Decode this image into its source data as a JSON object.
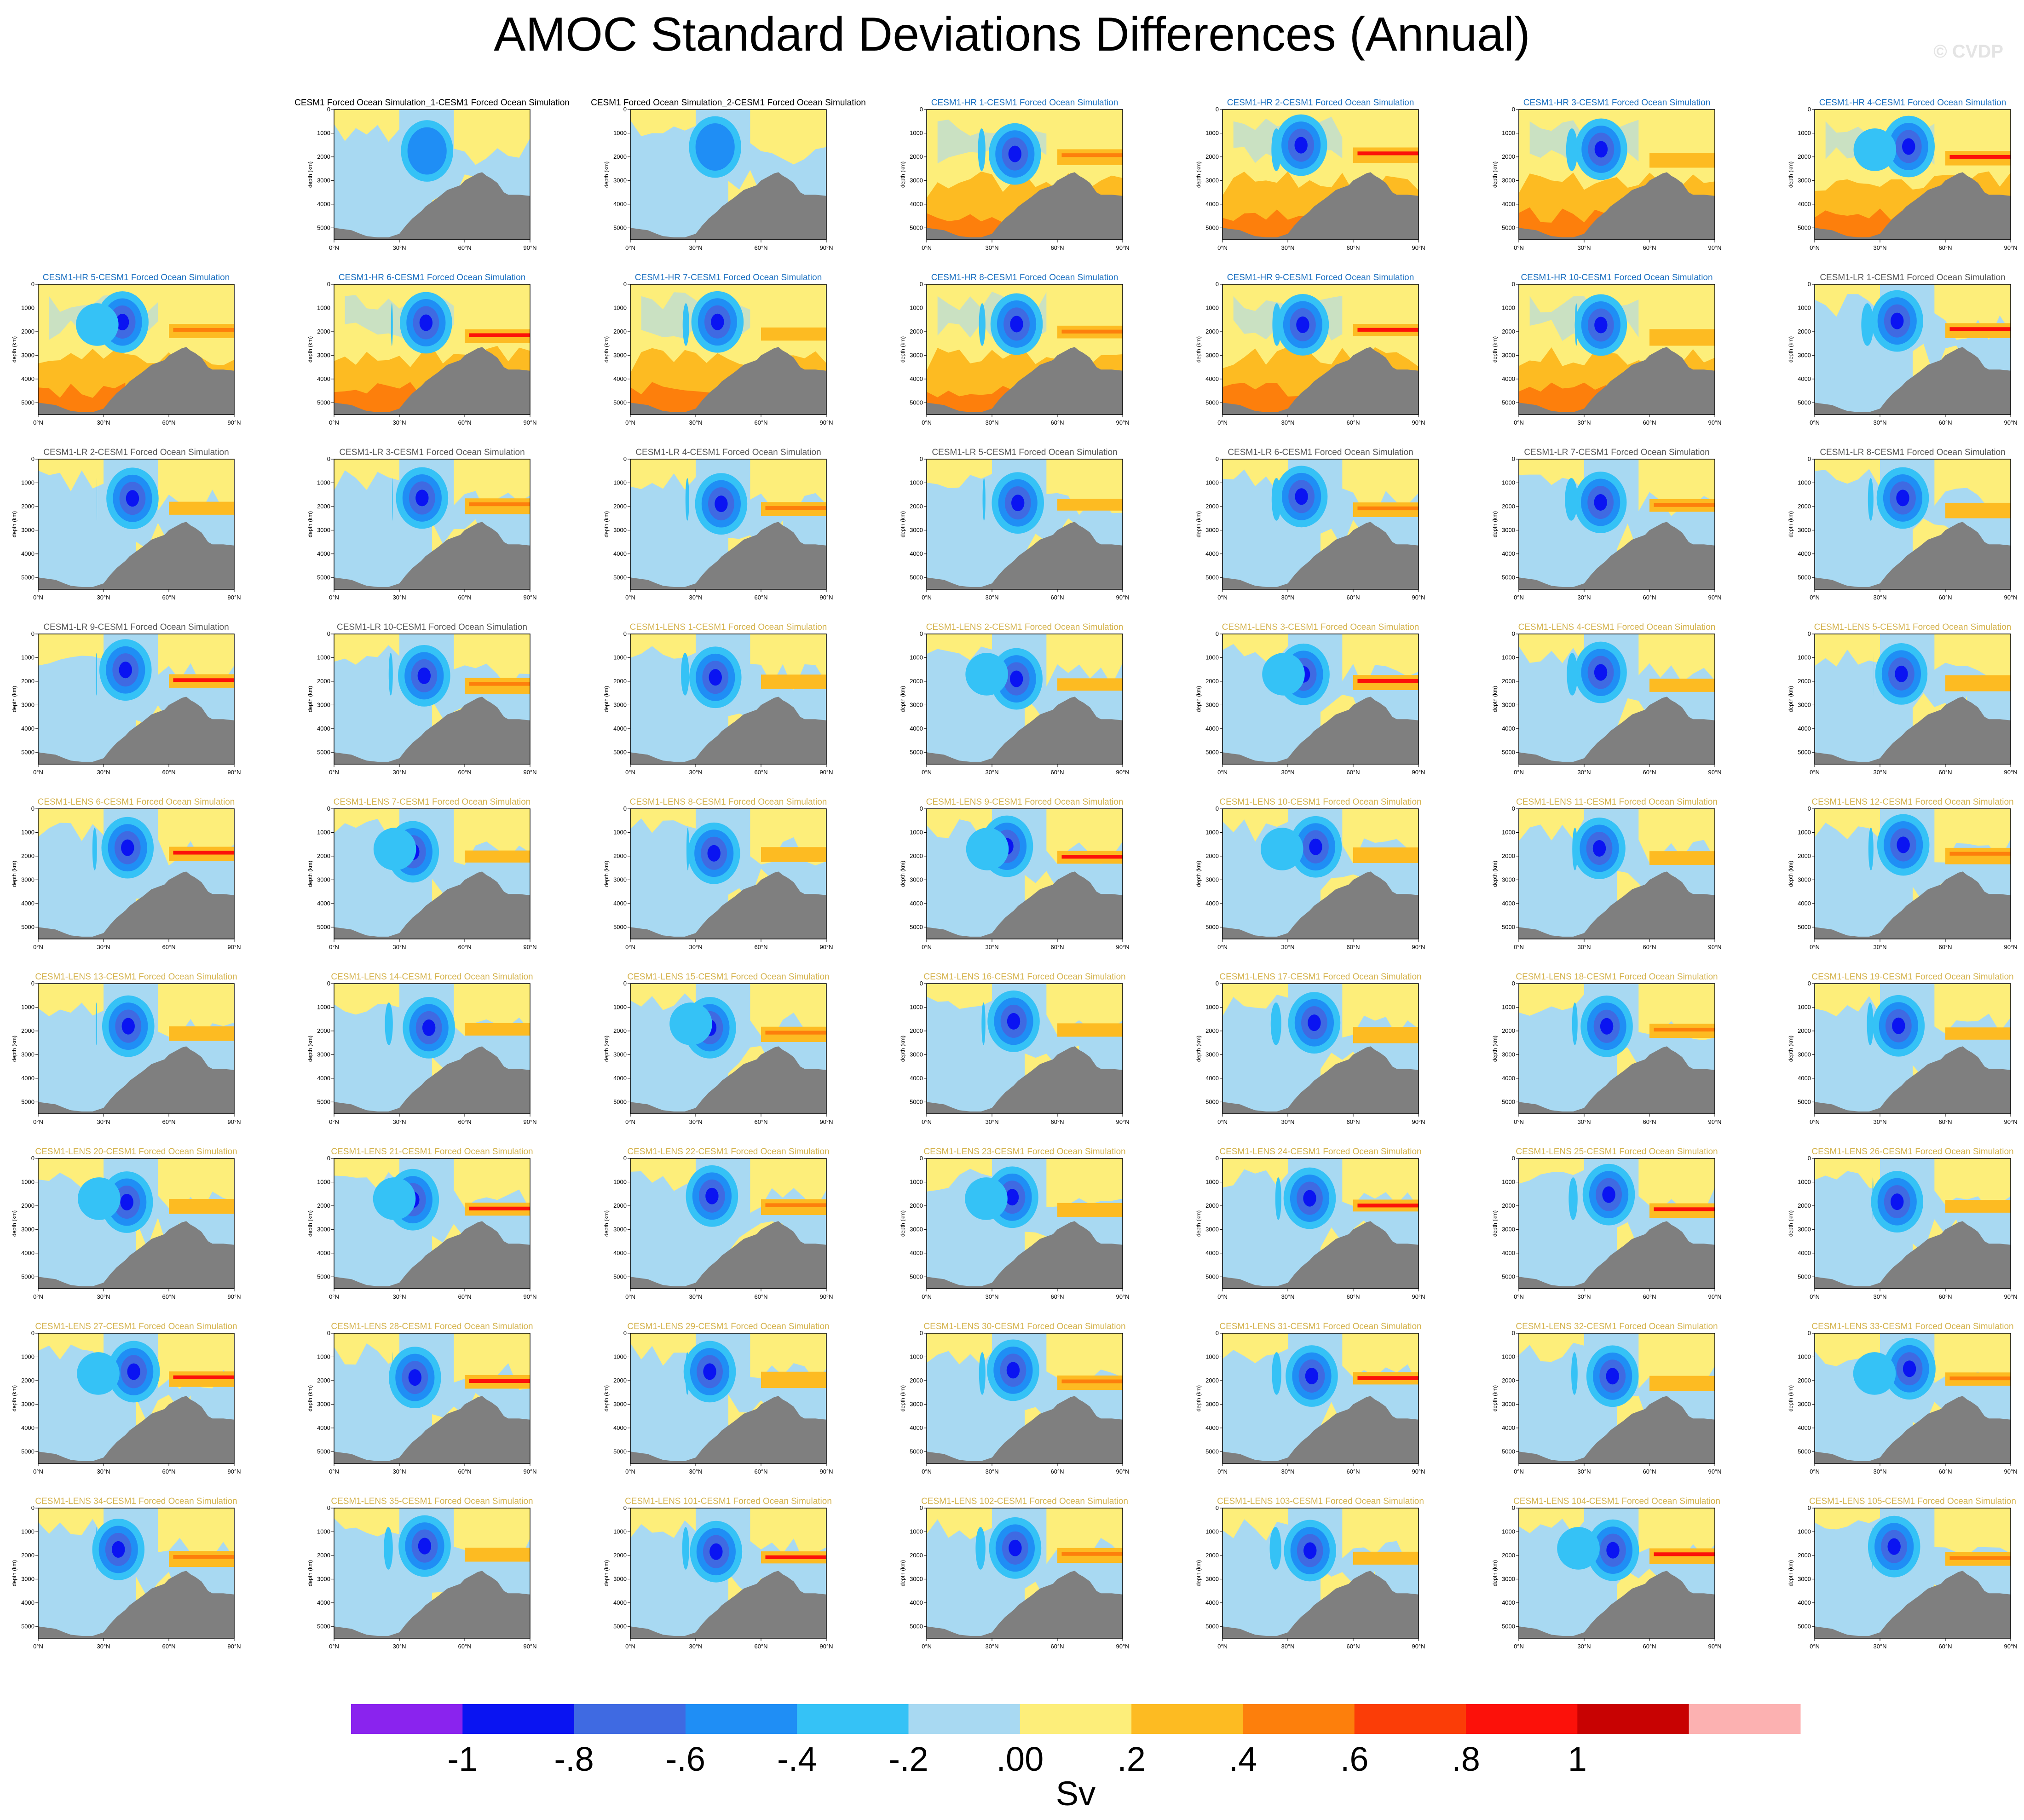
{
  "title": "AMOC Standard Deviations Differences (Annual)",
  "watermark": "© CVDP",
  "chart_data": {
    "type": "heatmap",
    "description_free": true,
    "y_axis": {
      "label": "depth (km)",
      "ticks": [
        "0",
        "1000",
        "2000",
        "3000",
        "4000",
        "5000"
      ],
      "range": [
        0,
        5500
      ],
      "inverted": true
    },
    "x_axis": {
      "ticks": [
        "0°N",
        "30°N",
        "60°N",
        "90°N"
      ],
      "range": [
        0,
        90
      ]
    },
    "panels": [
      {
        "title": "CESM1 Forced Ocean Simulation_1-CESM1 Forced Ocean Simulation",
        "group": "OBS",
        "row": 0,
        "col": 1
      },
      {
        "title": "CESM1 Forced Ocean Simulation_2-CESM1 Forced Ocean Simulation",
        "group": "OBS",
        "row": 0,
        "col": 2
      },
      {
        "title": "CESM1-HR 1-CESM1 Forced Ocean Simulation",
        "group": "HR",
        "row": 0,
        "col": 3
      },
      {
        "title": "CESM1-HR 2-CESM1 Forced Ocean Simulation",
        "group": "HR",
        "row": 0,
        "col": 4
      },
      {
        "title": "CESM1-HR 3-CESM1 Forced Ocean Simulation",
        "group": "HR",
        "row": 0,
        "col": 5
      },
      {
        "title": "CESM1-HR 4-CESM1 Forced Ocean Simulation",
        "group": "HR",
        "row": 0,
        "col": 6
      },
      {
        "title": "CESM1-HR 5-CESM1 Forced Ocean Simulation",
        "group": "HR",
        "row": 1,
        "col": 0
      },
      {
        "title": "CESM1-HR 6-CESM1 Forced Ocean Simulation",
        "group": "HR",
        "row": 1,
        "col": 1
      },
      {
        "title": "CESM1-HR 7-CESM1 Forced Ocean Simulation",
        "group": "HR",
        "row": 1,
        "col": 2
      },
      {
        "title": "CESM1-HR 8-CESM1 Forced Ocean Simulation",
        "group": "HR",
        "row": 1,
        "col": 3
      },
      {
        "title": "CESM1-HR 9-CESM1 Forced Ocean Simulation",
        "group": "HR",
        "row": 1,
        "col": 4
      },
      {
        "title": "CESM1-HR 10-CESM1 Forced Ocean Simulation",
        "group": "HR",
        "row": 1,
        "col": 5
      },
      {
        "title": "CESM1-LR 1-CESM1 Forced Ocean Simulation",
        "group": "LR",
        "row": 1,
        "col": 6
      },
      {
        "title": "CESM1-LR 2-CESM1 Forced Ocean Simulation",
        "group": "LR",
        "row": 2,
        "col": 0
      },
      {
        "title": "CESM1-LR 3-CESM1 Forced Ocean Simulation",
        "group": "LR",
        "row": 2,
        "col": 1
      },
      {
        "title": "CESM1-LR 4-CESM1 Forced Ocean Simulation",
        "group": "LR",
        "row": 2,
        "col": 2
      },
      {
        "title": "CESM1-LR 5-CESM1 Forced Ocean Simulation",
        "group": "LR",
        "row": 2,
        "col": 3
      },
      {
        "title": "CESM1-LR 6-CESM1 Forced Ocean Simulation",
        "group": "LR",
        "row": 2,
        "col": 4
      },
      {
        "title": "CESM1-LR 7-CESM1 Forced Ocean Simulation",
        "group": "LR",
        "row": 2,
        "col": 5
      },
      {
        "title": "CESM1-LR 8-CESM1 Forced Ocean Simulation",
        "group": "LR",
        "row": 2,
        "col": 6
      },
      {
        "title": "CESM1-LR 9-CESM1 Forced Ocean Simulation",
        "group": "LR",
        "row": 3,
        "col": 0
      },
      {
        "title": "CESM1-LR 10-CESM1 Forced Ocean Simulation",
        "group": "LR",
        "row": 3,
        "col": 1
      },
      {
        "title": "CESM1-LENS 1-CESM1 Forced Ocean Simulation",
        "group": "LENS",
        "row": 3,
        "col": 2
      },
      {
        "title": "CESM1-LENS 2-CESM1 Forced Ocean Simulation",
        "group": "LENS",
        "row": 3,
        "col": 3
      },
      {
        "title": "CESM1-LENS 3-CESM1 Forced Ocean Simulation",
        "group": "LENS",
        "row": 3,
        "col": 4
      },
      {
        "title": "CESM1-LENS 4-CESM1 Forced Ocean Simulation",
        "group": "LENS",
        "row": 3,
        "col": 5
      },
      {
        "title": "CESM1-LENS 5-CESM1 Forced Ocean Simulation",
        "group": "LENS",
        "row": 3,
        "col": 6
      },
      {
        "title": "CESM1-LENS 6-CESM1 Forced Ocean Simulation",
        "group": "LENS",
        "row": 4,
        "col": 0
      },
      {
        "title": "CESM1-LENS 7-CESM1 Forced Ocean Simulation",
        "group": "LENS",
        "row": 4,
        "col": 1
      },
      {
        "title": "CESM1-LENS 8-CESM1 Forced Ocean Simulation",
        "group": "LENS",
        "row": 4,
        "col": 2
      },
      {
        "title": "CESM1-LENS 9-CESM1 Forced Ocean Simulation",
        "group": "LENS",
        "row": 4,
        "col": 3
      },
      {
        "title": "CESM1-LENS 10-CESM1 Forced Ocean Simulation",
        "group": "LENS",
        "row": 4,
        "col": 4
      },
      {
        "title": "CESM1-LENS 11-CESM1 Forced Ocean Simulation",
        "group": "LENS",
        "row": 4,
        "col": 5
      },
      {
        "title": "CESM1-LENS 12-CESM1 Forced Ocean Simulation",
        "group": "LENS",
        "row": 4,
        "col": 6
      },
      {
        "title": "CESM1-LENS 13-CESM1 Forced Ocean Simulation",
        "group": "LENS",
        "row": 5,
        "col": 0
      },
      {
        "title": "CESM1-LENS 14-CESM1 Forced Ocean Simulation",
        "group": "LENS",
        "row": 5,
        "col": 1
      },
      {
        "title": "CESM1-LENS 15-CESM1 Forced Ocean Simulation",
        "group": "LENS",
        "row": 5,
        "col": 2
      },
      {
        "title": "CESM1-LENS 16-CESM1 Forced Ocean Simulation",
        "group": "LENS",
        "row": 5,
        "col": 3
      },
      {
        "title": "CESM1-LENS 17-CESM1 Forced Ocean Simulation",
        "group": "LENS",
        "row": 5,
        "col": 4
      },
      {
        "title": "CESM1-LENS 18-CESM1 Forced Ocean Simulation",
        "group": "LENS",
        "row": 5,
        "col": 5
      },
      {
        "title": "CESM1-LENS 19-CESM1 Forced Ocean Simulation",
        "group": "LENS",
        "row": 5,
        "col": 6
      },
      {
        "title": "CESM1-LENS 20-CESM1 Forced Ocean Simulation",
        "group": "LENS",
        "row": 6,
        "col": 0
      },
      {
        "title": "CESM1-LENS 21-CESM1 Forced Ocean Simulation",
        "group": "LENS",
        "row": 6,
        "col": 1
      },
      {
        "title": "CESM1-LENS 22-CESM1 Forced Ocean Simulation",
        "group": "LENS",
        "row": 6,
        "col": 2
      },
      {
        "title": "CESM1-LENS 23-CESM1 Forced Ocean Simulation",
        "group": "LENS",
        "row": 6,
        "col": 3
      },
      {
        "title": "CESM1-LENS 24-CESM1 Forced Ocean Simulation",
        "group": "LENS",
        "row": 6,
        "col": 4
      },
      {
        "title": "CESM1-LENS 25-CESM1 Forced Ocean Simulation",
        "group": "LENS",
        "row": 6,
        "col": 5
      },
      {
        "title": "CESM1-LENS 26-CESM1 Forced Ocean Simulation",
        "group": "LENS",
        "row": 6,
        "col": 6
      },
      {
        "title": "CESM1-LENS 27-CESM1 Forced Ocean Simulation",
        "group": "LENS",
        "row": 7,
        "col": 0
      },
      {
        "title": "CESM1-LENS 28-CESM1 Forced Ocean Simulation",
        "group": "LENS",
        "row": 7,
        "col": 1
      },
      {
        "title": "CESM1-LENS 29-CESM1 Forced Ocean Simulation",
        "group": "LENS",
        "row": 7,
        "col": 2
      },
      {
        "title": "CESM1-LENS 30-CESM1 Forced Ocean Simulation",
        "group": "LENS",
        "row": 7,
        "col": 3
      },
      {
        "title": "CESM1-LENS 31-CESM1 Forced Ocean Simulation",
        "group": "LENS",
        "row": 7,
        "col": 4
      },
      {
        "title": "CESM1-LENS 32-CESM1 Forced Ocean Simulation",
        "group": "LENS",
        "row": 7,
        "col": 5
      },
      {
        "title": "CESM1-LENS 33-CESM1 Forced Ocean Simulation",
        "group": "LENS",
        "row": 7,
        "col": 6
      },
      {
        "title": "CESM1-LENS 34-CESM1 Forced Ocean Simulation",
        "group": "LENS",
        "row": 8,
        "col": 0
      },
      {
        "title": "CESM1-LENS 35-CESM1 Forced Ocean Simulation",
        "group": "LENS",
        "row": 8,
        "col": 1
      },
      {
        "title": "CESM1-LENS 101-CESM1 Forced Ocean Simulation",
        "group": "LENS",
        "row": 8,
        "col": 2
      },
      {
        "title": "CESM1-LENS 102-CESM1 Forced Ocean Simulation",
        "group": "LENS",
        "row": 8,
        "col": 3
      },
      {
        "title": "CESM1-LENS 103-CESM1 Forced Ocean Simulation",
        "group": "LENS",
        "row": 8,
        "col": 4
      },
      {
        "title": "CESM1-LENS 104-CESM1 Forced Ocean Simulation",
        "group": "LENS",
        "row": 8,
        "col": 5
      },
      {
        "title": "CESM1-LENS 105-CESM1 Forced Ocean Simulation",
        "group": "LENS",
        "row": 8,
        "col": 6
      }
    ],
    "group_title_colors": {
      "OBS": "#000000",
      "HR": "#1a6fc0",
      "LR": "#555555",
      "LENS": "#d4b24c"
    },
    "colorbar": {
      "unit": "Sv",
      "labels": [
        "-1",
        "-.8",
        "-.6",
        "-.4",
        "-.2",
        ".00",
        ".2",
        ".4",
        ".6",
        ".8",
        "1"
      ],
      "colors": [
        "#8a23ee",
        "#0a14f2",
        "#3f6ae2",
        "#1f8ef5",
        "#35c2f6",
        "#a8d9f2",
        "#fdee7a",
        "#fdbb22",
        "#fd7f0c",
        "#fb3d07",
        "#fc110a",
        "#c80202",
        "#fcb1b1"
      ]
    },
    "palette": {
      "land": "#7f7f7f"
    }
  }
}
